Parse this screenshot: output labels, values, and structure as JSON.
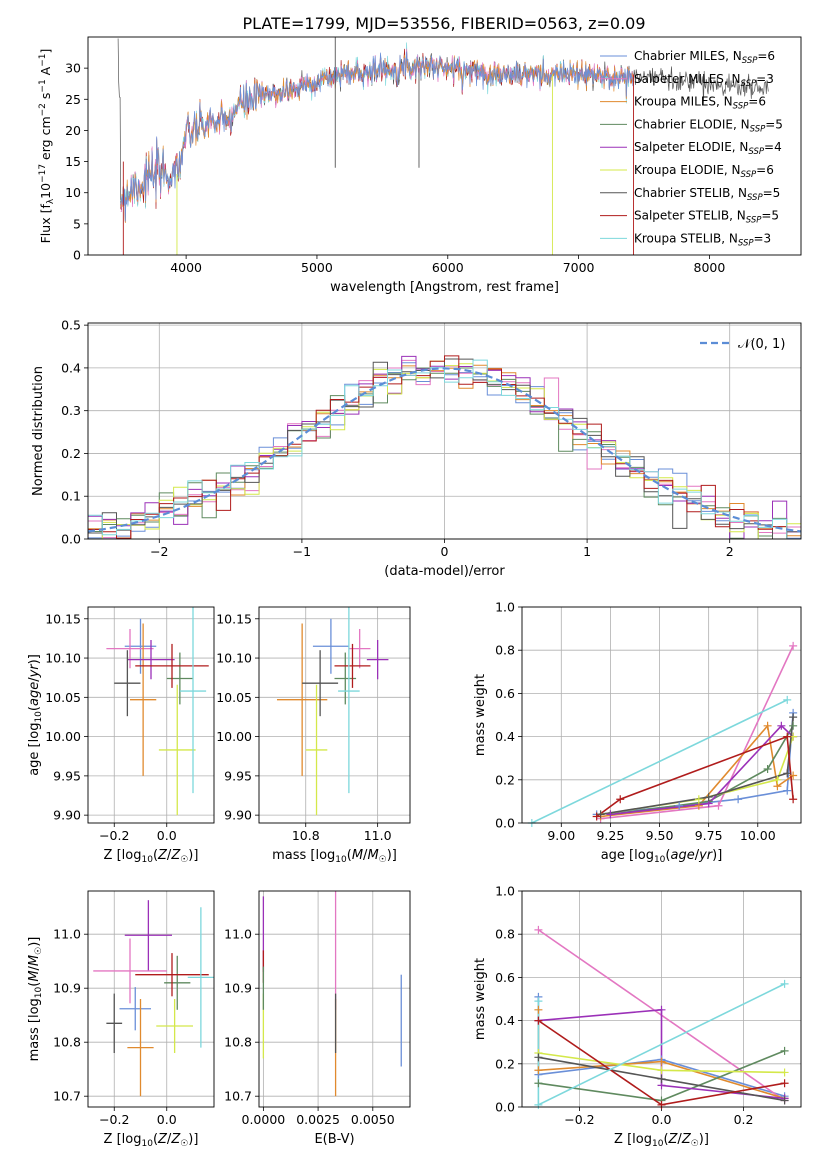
{
  "title": "PLATE=1799, MJD=53556, FIBERID=0563, z=0.09",
  "colors": {
    "chabrier_miles": "#6a8fd8",
    "salpeter_miles": "#e377c2",
    "kroupa_miles": "#e08a2e",
    "chabrier_elodie": "#5f8a5f",
    "salpeter_elodie": "#9b30b8",
    "kroupa_elodie": "#d4e84a",
    "chabrier_stelib": "#555555",
    "salpeter_stelib": "#b01c1c",
    "kroupa_stelib": "#7dd8dc",
    "normal_curve": "#5b8dd6",
    "grid": "#b0b0b0"
  },
  "chart_data": [
    {
      "id": "spectrum",
      "type": "line",
      "xlabel": "wavelength [Angstrom, rest frame]",
      "ylabel": "Flux [f_λ 10^-17 erg cm^-2 s^-1 A^-1]",
      "xlim": [
        3250,
        8700
      ],
      "ylim": [
        0,
        35
      ],
      "xticks": [
        4000,
        5000,
        6000,
        7000,
        8000
      ],
      "yticks": [
        0,
        5,
        10,
        15,
        20,
        25,
        30
      ],
      "grid": false,
      "legend_position": "upper right",
      "legend": [
        {
          "model": "Chabrier MILES",
          "nssp": "6",
          "color_key": "chabrier_miles"
        },
        {
          "model": "Salpeter MILES",
          "nssp": "3",
          "color_key": "salpeter_miles"
        },
        {
          "model": "Kroupa MILES",
          "nssp": "6",
          "color_key": "kroupa_miles"
        },
        {
          "model": "Chabrier ELODIE",
          "nssp": "5",
          "color_key": "chabrier_elodie"
        },
        {
          "model": "Salpeter ELODIE",
          "nssp": "4",
          "color_key": "salpeter_elodie"
        },
        {
          "model": "Kroupa ELODIE",
          "nssp": "6",
          "color_key": "kroupa_elodie"
        },
        {
          "model": "Chabrier STELIB",
          "nssp": "5",
          "color_key": "chabrier_stelib"
        },
        {
          "model": "Salpeter STELIB",
          "nssp": "5",
          "color_key": "salpeter_stelib"
        },
        {
          "model": "Kroupa STELIB",
          "nssp": "3",
          "color_key": "kroupa_stelib"
        }
      ],
      "continuum": {
        "x": [
          3500,
          3600,
          3700,
          3800,
          3900,
          3950,
          4000,
          4100,
          4200,
          4300,
          4400,
          4500,
          4600,
          4800,
          5000,
          5200,
          5400,
          5600,
          5800,
          6000,
          6200,
          6400,
          6600,
          6800,
          7000,
          7200,
          7400,
          7600,
          7800,
          8000,
          8200,
          8400
        ],
        "y": [
          9,
          11,
          12,
          13,
          13,
          15,
          19,
          20.5,
          21.5,
          21,
          24,
          25,
          25.5,
          26.5,
          28,
          29,
          29.5,
          30,
          30.5,
          30,
          29.5,
          29,
          29,
          29,
          29,
          28.5,
          28.5,
          28.5,
          28,
          27.5,
          27,
          26.5
        ]
      },
      "series_ranges": [
        {
          "color_key": "chabrier_stelib",
          "x": [
            3480,
            8450
          ]
        },
        {
          "color_key": "salpeter_stelib",
          "x": [
            3500,
            7420
          ]
        },
        {
          "color_key": "kroupa_stelib",
          "x": [
            3500,
            7420
          ]
        },
        {
          "color_key": "salpeter_miles",
          "x": [
            3500,
            7420
          ]
        },
        {
          "color_key": "kroupa_miles",
          "x": [
            3500,
            7420
          ]
        },
        {
          "color_key": "chabrier_miles",
          "x": [
            3500,
            7420
          ]
        }
      ],
      "spikes": [
        {
          "x": 3520,
          "y0": 0,
          "y1": 15,
          "color_key": "salpeter_stelib"
        },
        {
          "x": 3930,
          "y0": 0,
          "y1": 13,
          "color_key": "kroupa_elodie"
        },
        {
          "x": 5140,
          "y0": 14,
          "y1": 35,
          "color_key": "chabrier_stelib"
        },
        {
          "x": 5780,
          "y0": 14,
          "y1": 30,
          "color_key": "chabrier_stelib"
        },
        {
          "x": 6800,
          "y0": 0,
          "y1": 29,
          "color_key": "kroupa_elodie"
        },
        {
          "x": 7420,
          "y0": 0,
          "y1": 29,
          "color_key": "salpeter_stelib"
        }
      ]
    },
    {
      "id": "residuals",
      "type": "line",
      "xlabel": "(data-model)/error",
      "ylabel": "Normed distribution",
      "xlim": [
        -2.5,
        2.5
      ],
      "ylim": [
        0,
        0.505
      ],
      "xticks": [
        -2,
        -1,
        0,
        1,
        2
      ],
      "yticks": [
        0.0,
        0.1,
        0.2,
        0.3,
        0.4,
        0.5
      ],
      "grid": true,
      "legend": [
        {
          "label": "𝒩(0, 1)",
          "style": "dashed",
          "color_key": "normal_curve"
        }
      ],
      "legend_position": "upper right",
      "bin_width": 0.1,
      "note": "9 step histograms of normalized residuals around a standard normal curve, peak near 0.40"
    },
    {
      "id": "age_vs_z",
      "type": "scatter",
      "xlabel": "Z [log10(Z/Z☉)]",
      "ylabel": "age  [log10(age/yr)]",
      "xlim": [
        -0.3,
        0.18
      ],
      "ylim": [
        9.89,
        10.165
      ],
      "xticks": [
        -0.2,
        0.0
      ],
      "yticks": [
        9.9,
        9.95,
        10.0,
        10.05,
        10.1,
        10.15
      ],
      "grid": true,
      "points": [
        {
          "color_key": "chabrier_miles",
          "x": -0.1,
          "xerr": 0.06,
          "y": 10.115,
          "yerr": 0.035
        },
        {
          "color_key": "salpeter_miles",
          "x": -0.14,
          "xerr": 0.09,
          "y": 10.112,
          "yerr": 0.025
        },
        {
          "color_key": "kroupa_miles",
          "x": -0.09,
          "xerr": 0.05,
          "y": 10.047,
          "yerr": 0.097
        },
        {
          "color_key": "chabrier_elodie",
          "x": 0.05,
          "xerr": 0.05,
          "y": 10.074,
          "yerr": 0.033
        },
        {
          "color_key": "salpeter_elodie",
          "x": -0.06,
          "xerr": 0.09,
          "y": 10.098,
          "yerr": 0.025
        },
        {
          "color_key": "kroupa_elodie",
          "x": 0.04,
          "xerr": 0.07,
          "y": 9.983,
          "yerr": 0.083
        },
        {
          "color_key": "chabrier_stelib",
          "x": -0.15,
          "xerr": 0.05,
          "y": 10.068,
          "yerr": 0.042
        },
        {
          "color_key": "salpeter_stelib",
          "x": 0.02,
          "xerr": 0.14,
          "y": 10.09,
          "yerr": 0.028
        },
        {
          "color_key": "kroupa_stelib",
          "x": 0.1,
          "xerr": 0.05,
          "y": 10.058,
          "yerr": 0.13
        }
      ]
    },
    {
      "id": "age_vs_mass",
      "type": "scatter",
      "xlabel": "mass [log10(M/M☉)]",
      "ylabel": "",
      "xlim": [
        10.67,
        11.09
      ],
      "ylim": [
        9.89,
        10.165
      ],
      "xticks": [
        10.8,
        11.0
      ],
      "yticks": [
        9.9,
        9.95,
        10.0,
        10.05,
        10.1,
        10.15
      ],
      "grid": true,
      "points": [
        {
          "color_key": "chabrier_miles",
          "x": 10.87,
          "xerr": 0.05,
          "y": 10.115,
          "yerr": 0.035
        },
        {
          "color_key": "salpeter_miles",
          "x": 10.95,
          "xerr": 0.03,
          "y": 10.112,
          "yerr": 0.025
        },
        {
          "color_key": "kroupa_miles",
          "x": 10.79,
          "xerr": 0.07,
          "y": 10.047,
          "yerr": 0.097
        },
        {
          "color_key": "chabrier_elodie",
          "x": 10.91,
          "xerr": 0.03,
          "y": 10.074,
          "yerr": 0.033
        },
        {
          "color_key": "salpeter_elodie",
          "x": 11.0,
          "xerr": 0.03,
          "y": 10.098,
          "yerr": 0.025
        },
        {
          "color_key": "kroupa_elodie",
          "x": 10.83,
          "xerr": 0.03,
          "y": 9.983,
          "yerr": 0.083
        },
        {
          "color_key": "chabrier_stelib",
          "x": 10.84,
          "xerr": 0.05,
          "y": 10.068,
          "yerr": 0.042
        },
        {
          "color_key": "salpeter_stelib",
          "x": 10.93,
          "xerr": 0.05,
          "y": 10.09,
          "yerr": 0.028
        },
        {
          "color_key": "kroupa_stelib",
          "x": 10.92,
          "xerr": 0.03,
          "y": 10.058,
          "yerr": 0.13
        }
      ]
    },
    {
      "id": "mass_weight_vs_age",
      "type": "line",
      "xlabel": "age  [log10(age/yr)]",
      "ylabel": "mass weight",
      "xlim": [
        8.8,
        10.22
      ],
      "ylim": [
        0,
        1.0
      ],
      "xticks": [
        9.0,
        9.25,
        9.5,
        9.75,
        10.0
      ],
      "yticks": [
        0.0,
        0.2,
        0.4,
        0.6,
        0.8,
        1.0
      ],
      "grid": true,
      "series": [
        {
          "color_key": "chabrier_miles",
          "x": [
            9.18,
            9.6,
            9.9,
            10.15,
            10.18
          ],
          "y": [
            0.04,
            0.08,
            0.11,
            0.15,
            0.51
          ]
        },
        {
          "color_key": "salpeter_miles",
          "x": [
            9.2,
            9.8,
            10.18
          ],
          "y": [
            0.02,
            0.08,
            0.82
          ]
        },
        {
          "color_key": "kroupa_miles",
          "x": [
            9.2,
            9.7,
            10.05,
            10.1,
            10.18
          ],
          "y": [
            0.03,
            0.08,
            0.45,
            0.17,
            0.22
          ]
        },
        {
          "color_key": "chabrier_elodie",
          "x": [
            9.25,
            9.75,
            10.05,
            10.18
          ],
          "y": [
            0.04,
            0.1,
            0.25,
            0.45
          ]
        },
        {
          "color_key": "salpeter_elodie",
          "x": [
            9.25,
            9.75,
            10.12,
            10.18
          ],
          "y": [
            0.04,
            0.09,
            0.45,
            0.4
          ]
        },
        {
          "color_key": "kroupa_elodie",
          "x": [
            9.2,
            9.7,
            10.1,
            10.18
          ],
          "y": [
            0.04,
            0.11,
            0.2,
            0.4
          ]
        },
        {
          "color_key": "chabrier_stelib",
          "x": [
            9.2,
            9.75,
            10.15,
            10.18
          ],
          "y": [
            0.04,
            0.12,
            0.23,
            0.49
          ]
        },
        {
          "color_key": "salpeter_stelib",
          "x": [
            9.18,
            9.3,
            10.15,
            10.18
          ],
          "y": [
            0.03,
            0.11,
            0.4,
            0.11
          ]
        },
        {
          "color_key": "kroupa_stelib",
          "x": [
            8.85,
            10.15
          ],
          "y": [
            0.0,
            0.57
          ]
        }
      ]
    },
    {
      "id": "mass_vs_z",
      "type": "scatter",
      "xlabel": "Z [log10(Z/Z☉)]",
      "ylabel": "mass [log10(M/M☉)]",
      "xlim": [
        -0.3,
        0.18
      ],
      "ylim": [
        10.68,
        11.08
      ],
      "xticks": [
        -0.2,
        0.0
      ],
      "yticks": [
        10.7,
        10.8,
        10.9,
        11.0
      ],
      "grid": true,
      "points": [
        {
          "color_key": "chabrier_miles",
          "x": -0.12,
          "xerr": 0.06,
          "y": 10.862,
          "yerr": 0.04
        },
        {
          "color_key": "salpeter_miles",
          "x": -0.14,
          "xerr": 0.14,
          "y": 10.932,
          "yerr": 0.06
        },
        {
          "color_key": "kroupa_miles",
          "x": -0.1,
          "xerr": 0.05,
          "y": 10.79,
          "yerr": 0.09
        },
        {
          "color_key": "chabrier_elodie",
          "x": 0.04,
          "xerr": 0.05,
          "y": 10.91,
          "yerr": 0.05
        },
        {
          "color_key": "salpeter_elodie",
          "x": -0.07,
          "xerr": 0.09,
          "y": 10.998,
          "yerr": 0.065
        },
        {
          "color_key": "kroupa_elodie",
          "x": 0.03,
          "xerr": 0.07,
          "y": 10.83,
          "yerr": 0.05
        },
        {
          "color_key": "chabrier_stelib",
          "x": -0.2,
          "xerr": 0.03,
          "y": 10.835,
          "yerr": 0.055
        },
        {
          "color_key": "salpeter_stelib",
          "x": 0.02,
          "xerr": 0.14,
          "y": 10.925,
          "yerr": 0.04
        },
        {
          "color_key": "kroupa_stelib",
          "x": 0.13,
          "xerr": 0.05,
          "y": 10.92,
          "yerr": 0.13
        }
      ]
    },
    {
      "id": "mass_vs_ebv",
      "type": "scatter",
      "xlabel": "E(B-V)",
      "ylabel": "",
      "xlim": [
        -0.0002,
        0.0067
      ],
      "ylim": [
        10.68,
        11.08
      ],
      "xticks": [
        0.0,
        0.0025,
        0.005
      ],
      "xticklabels": [
        "0.0000",
        "0.0025",
        "0.0050"
      ],
      "yticks": [
        10.7,
        10.8,
        10.9,
        11.0
      ],
      "grid": true,
      "points": [
        {
          "color_key": "salpeter_elodie",
          "x": 0.0,
          "y": 11.0,
          "yerr": 0.07
        },
        {
          "color_key": "salpeter_stelib",
          "x": 0.0,
          "y": 10.94,
          "yerr": 0.03
        },
        {
          "color_key": "kroupa_elodie",
          "x": 0.0,
          "y": 10.83,
          "yerr": 0.06
        },
        {
          "color_key": "chabrier_elodie",
          "x": 0.0,
          "y": 10.9,
          "yerr": 0.04
        },
        {
          "color_key": "salpeter_miles",
          "x": 0.0033,
          "y": 10.98,
          "yerr": 0.12
        },
        {
          "color_key": "kroupa_miles",
          "x": 0.0033,
          "y": 10.79,
          "yerr": 0.09
        },
        {
          "color_key": "chabrier_stelib",
          "x": 0.0033,
          "y": 10.835,
          "yerr": 0.055
        },
        {
          "color_key": "chabrier_miles",
          "x": 0.0063,
          "y": 10.84,
          "yerr": 0.085
        }
      ]
    },
    {
      "id": "mass_weight_vs_z",
      "type": "line",
      "xlabel": "Z [log10(Z/Z☉)]",
      "ylabel": "mass weight",
      "xlim": [
        -0.34,
        0.34
      ],
      "ylim": [
        0,
        1.0
      ],
      "xticks": [
        -0.2,
        0.0,
        0.2
      ],
      "yticks": [
        0.0,
        0.2,
        0.4,
        0.6,
        0.8,
        1.0
      ],
      "grid": true,
      "series": [
        {
          "color_key": "chabrier_miles",
          "x": [
            -0.3,
            -0.3,
            0.0,
            0.3
          ],
          "y": [
            0.51,
            0.15,
            0.22,
            0.05
          ]
        },
        {
          "color_key": "salpeter_miles",
          "x": [
            -0.3,
            0.3
          ],
          "y": [
            0.82,
            0.03
          ]
        },
        {
          "color_key": "kroupa_miles",
          "x": [
            -0.3,
            -0.3,
            0.0,
            0.3
          ],
          "y": [
            0.45,
            0.17,
            0.21,
            0.04
          ]
        },
        {
          "color_key": "chabrier_elodie",
          "x": [
            -0.3,
            0.0,
            0.3
          ],
          "y": [
            0.11,
            0.03,
            0.26
          ]
        },
        {
          "color_key": "salpeter_elodie",
          "x": [
            -0.3,
            0.0,
            0.0,
            0.3
          ],
          "y": [
            0.4,
            0.45,
            0.1,
            0.04
          ]
        },
        {
          "color_key": "kroupa_elodie",
          "x": [
            -0.3,
            0.0,
            0.3
          ],
          "y": [
            0.25,
            0.17,
            0.16
          ]
        },
        {
          "color_key": "chabrier_stelib",
          "x": [
            -0.3,
            0.0,
            0.3
          ],
          "y": [
            0.23,
            0.13,
            0.03
          ]
        },
        {
          "color_key": "salpeter_stelib",
          "x": [
            -0.3,
            0.0,
            0.3
          ],
          "y": [
            0.4,
            0.01,
            0.11
          ]
        },
        {
          "color_key": "kroupa_stelib",
          "x": [
            -0.3,
            -0.3,
            0.3
          ],
          "y": [
            0.49,
            0.01,
            0.57
          ]
        }
      ]
    }
  ]
}
